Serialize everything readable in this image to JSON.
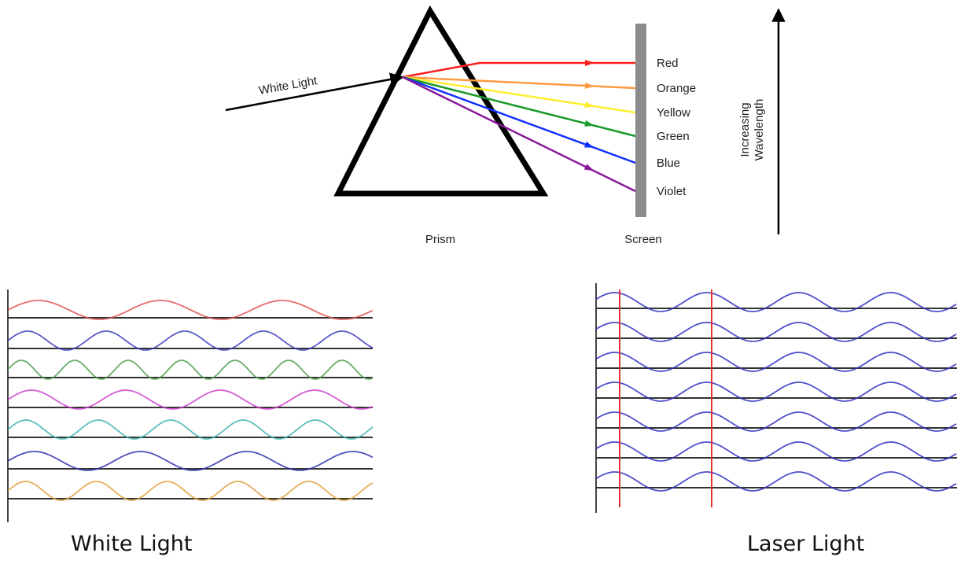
{
  "prism_diagram": {
    "input_label": "White Light",
    "colors": [
      "Red",
      "Orange",
      "Yellow",
      "Green",
      "Blue",
      "Violet"
    ],
    "axis_label": [
      "Increasing",
      "Wavelength"
    ],
    "prism_label": "Prism",
    "screen_label": "Screen"
  },
  "panels": [
    {
      "caption": "White Light"
    },
    {
      "caption": "Laser Light"
    }
  ]
}
